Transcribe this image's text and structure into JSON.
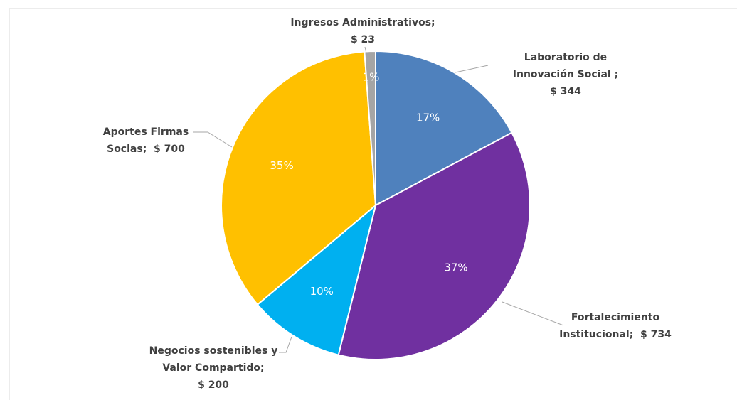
{
  "chart_data": {
    "type": "pie",
    "categories": [
      "Laboratorio de Innovación Social ;",
      "Fortalecimiento Institucional;",
      "Negocios sostenibles y Valor Compartido;",
      "Aportes Firmas Socias;",
      "Ingresos Administrativos;"
    ],
    "values": [
      344,
      734,
      200,
      700,
      23
    ],
    "value_labels": [
      "$ 344",
      "$ 734",
      "$ 200",
      "$ 700",
      "$ 23"
    ],
    "percent_labels": [
      "17%",
      "37%",
      "10%",
      "35%",
      "1%"
    ],
    "colors": [
      "#4f81bd",
      "#7030a0",
      "#00b0f0",
      "#ffc000",
      "#a5a5a5"
    ]
  }
}
